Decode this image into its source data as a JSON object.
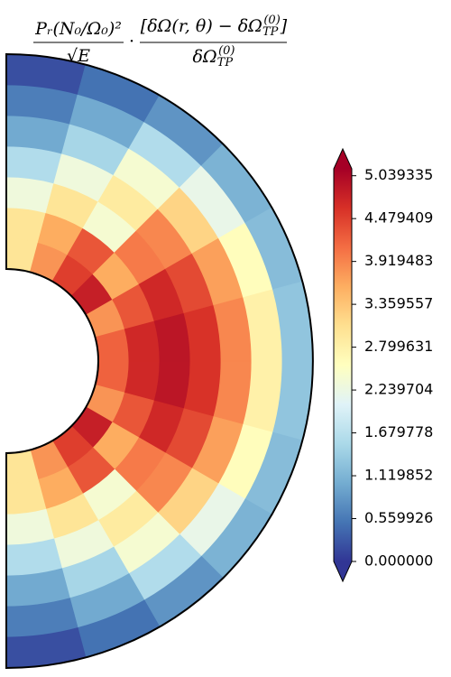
{
  "chart_data": {
    "type": "polar_contour",
    "title": {
      "left": {
        "numerator": "Pᵣ(N₀/Ω₀)²",
        "denominator": "√E"
      },
      "operator": "·",
      "right": {
        "numerator": [
          "[δΩ(r, θ) − δΩ",
          "TP",
          "(0)",
          "]"
        ],
        "denominator": [
          "δΩ",
          "TP",
          "(0)"
        ]
      }
    },
    "r": [
      0.35,
      0.45,
      0.55,
      0.65,
      0.75,
      0.85,
      0.95
    ],
    "theta": [
      7.5,
      22.5,
      37.5,
      52.5,
      67.5,
      82.5,
      97.5,
      112.5,
      127.5,
      142.5,
      157.5,
      172.5
    ],
    "z": [
      [
        3.0,
        3.8,
        4.5,
        4.8,
        3.8,
        4.2,
        4.2,
        3.8,
        4.8,
        4.5,
        3.8,
        3.0
      ],
      [
        3.0,
        3.6,
        4.3,
        3.6,
        4.3,
        4.7,
        4.7,
        4.3,
        3.6,
        4.3,
        3.6,
        3.0
      ],
      [
        2.3,
        3.0,
        2.4,
        4.0,
        4.7,
        4.9,
        4.9,
        4.7,
        4.0,
        2.4,
        3.0,
        2.3
      ],
      [
        1.6,
        2.3,
        2.9,
        3.9,
        4.4,
        4.6,
        4.6,
        4.4,
        3.9,
        2.9,
        2.3,
        1.6
      ],
      [
        1.0,
        1.5,
        2.4,
        3.2,
        3.7,
        3.9,
        3.9,
        3.7,
        3.2,
        2.4,
        1.5,
        1.0
      ],
      [
        0.6,
        1.0,
        1.6,
        2.2,
        2.6,
        2.8,
        2.8,
        2.6,
        2.2,
        1.6,
        1.0,
        0.6
      ],
      [
        0.2,
        0.5,
        0.8,
        1.1,
        1.2,
        1.3,
        1.3,
        1.2,
        1.1,
        0.8,
        0.5,
        0.2
      ]
    ],
    "rlim": [
      0.3,
      1.0
    ],
    "clim": [
      0,
      5.13
    ],
    "cticks": [
      {
        "value": 0,
        "label": "0.000000"
      },
      0.559926,
      1.119852,
      1.679778,
      2.239704,
      2.799631,
      3.359557,
      3.919483,
      4.479409,
      5.039335
    ],
    "colormap": [
      "#313695",
      "#4575b4",
      "#74add1",
      "#abd9e9",
      "#e0f3f8",
      "#ffffbf",
      "#fee090",
      "#fdae61",
      "#f46d43",
      "#d73027",
      "#a50026"
    ]
  }
}
